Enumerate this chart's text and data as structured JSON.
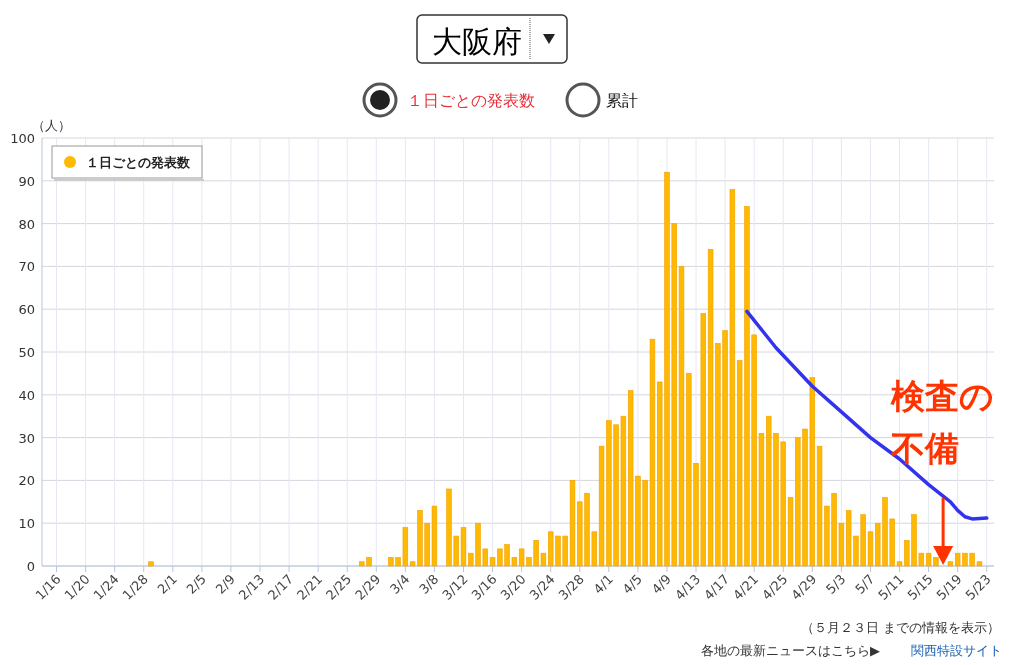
{
  "chart_data": {
    "type": "bar",
    "title": "大阪府",
    "ylabel": "（人）",
    "annotations": [
      "１日ごとの発表数",
      "累計",
      {
        "text": "検査の不備",
        "x": "--05-17",
        "y": 0
      },
      "（５月２３日 までの情報を表示）",
      "各地の最新ニュースはこちら▶",
      "関西特設サイト"
    ],
    "x": [
      "--01-16",
      "--01-17",
      "--01-18",
      "--01-19",
      "--01-20",
      "--01-21",
      "--01-22",
      "--01-23",
      "--01-24",
      "--01-25",
      "--01-26",
      "--01-27",
      "--01-28",
      "--01-29",
      "--01-30",
      "--01-31",
      "--02-01",
      "--02-02",
      "--02-03",
      "--02-04",
      "--02-05",
      "--02-06",
      "--02-07",
      "--02-08",
      "--02-09",
      "--02-10",
      "--02-11",
      "--02-12",
      "--02-13",
      "--02-14",
      "--02-15",
      "--02-16",
      "--02-17",
      "--02-18",
      "--02-19",
      "--02-20",
      "--02-21",
      "--02-22",
      "--02-23",
      "--02-24",
      "--02-25",
      "--02-26",
      "--02-27",
      "--02-28",
      "--02-29",
      "--03-01",
      "--03-02",
      "--03-03",
      "--03-04",
      "--03-05",
      "--03-06",
      "--03-07",
      "--03-08",
      "--03-09",
      "--03-10",
      "--03-11",
      "--03-12",
      "--03-13",
      "--03-14",
      "--03-15",
      "--03-16",
      "--03-17",
      "--03-18",
      "--03-19",
      "--03-20",
      "--03-21",
      "--03-22",
      "--03-23",
      "--03-24",
      "--03-25",
      "--03-26",
      "--03-27",
      "--03-28",
      "--03-29",
      "--03-30",
      "--03-31",
      "--04-01",
      "--04-02",
      "--04-03",
      "--04-04",
      "--04-05",
      "--04-06",
      "--04-07",
      "--04-08",
      "--04-09",
      "--04-10",
      "--04-11",
      "--04-12",
      "--04-13",
      "--04-14",
      "--04-15",
      "--04-16",
      "--04-17",
      "--04-18",
      "--04-19",
      "--04-20",
      "--04-21",
      "--04-22",
      "--04-23",
      "--04-24",
      "--04-25",
      "--04-26",
      "--04-27",
      "--04-28",
      "--04-29",
      "--04-30",
      "--05-01",
      "--05-02",
      "--05-03",
      "--05-04",
      "--05-05",
      "--05-06",
      "--05-07",
      "--05-08",
      "--05-09",
      "--05-10",
      "--05-11",
      "--05-12",
      "--05-13",
      "--05-14",
      "--05-15",
      "--05-16",
      "--05-17",
      "--05-18",
      "--05-19",
      "--05-20",
      "--05-21",
      "--05-22",
      "--05-23"
    ],
    "series": [
      {
        "name": "１日ごとの発表数",
        "color": "#ffb900",
        "values": [
          0,
          0,
          0,
          0,
          0,
          0,
          0,
          0,
          0,
          0,
          0,
          0,
          0,
          1,
          0,
          0,
          0,
          0,
          0,
          0,
          0,
          0,
          0,
          0,
          0,
          0,
          0,
          0,
          0,
          0,
          0,
          0,
          0,
          0,
          0,
          0,
          0,
          0,
          0,
          0,
          0,
          0,
          1,
          2,
          0,
          0,
          2,
          2,
          9,
          1,
          13,
          10,
          14,
          0,
          18,
          7,
          9,
          3,
          10,
          4,
          2,
          4,
          5,
          2,
          4,
          2,
          6,
          3,
          8,
          7,
          7,
          20,
          15,
          17,
          8,
          28,
          34,
          33,
          35,
          41,
          21,
          20,
          53,
          43,
          92,
          80,
          70,
          45,
          24,
          59,
          74,
          52,
          55,
          88,
          48,
          84,
          54,
          31,
          35,
          31,
          29,
          16,
          30,
          32,
          44,
          28,
          14,
          17,
          10,
          13,
          7,
          12,
          8,
          10,
          16,
          11,
          1,
          6,
          12,
          3,
          3,
          2,
          0,
          1,
          3,
          3,
          3,
          1,
          0
        ]
      },
      {
        "type": "line",
        "color": "#3333ee",
        "x": [
          "--04-20",
          "--04-24",
          "--04-29",
          "--05-03",
          "--05-07",
          "--05-11",
          "--05-15",
          "--05-18",
          "--05-19",
          "--05-20",
          "--05-21",
          "--05-23"
        ],
        "values": [
          59.5,
          51,
          42,
          36,
          30,
          25,
          19,
          15,
          13,
          11.5,
          11,
          11.2
        ]
      }
    ],
    "xlim": [
      "--01-14",
      "--05-24"
    ],
    "ylim": [
      0,
      100
    ],
    "xticks": [
      {
        "value": "--01-16",
        "label": "1/16"
      },
      {
        "value": "--01-20",
        "label": "1/20"
      },
      {
        "value": "--01-24",
        "label": "1/24"
      },
      {
        "value": "--01-28",
        "label": "1/28"
      },
      {
        "value": "--02-01",
        "label": "2/1"
      },
      {
        "value": "--02-05",
        "label": "2/5"
      },
      {
        "value": "--02-09",
        "label": "2/9"
      },
      {
        "value": "--02-13",
        "label": "2/13"
      },
      {
        "value": "--02-17",
        "label": "2/17"
      },
      {
        "value": "--02-21",
        "label": "2/21"
      },
      {
        "value": "--02-25",
        "label": "2/25"
      },
      {
        "value": "--02-29",
        "label": "2/29"
      },
      {
        "value": "--03-04",
        "label": "3/4"
      },
      {
        "value": "--03-08",
        "label": "3/8"
      },
      {
        "value": "--03-12",
        "label": "3/12"
      },
      {
        "value": "--03-16",
        "label": "3/16"
      },
      {
        "value": "--03-20",
        "label": "3/20"
      },
      {
        "value": "--03-24",
        "label": "3/24"
      },
      {
        "value": "--03-28",
        "label": "3/28"
      },
      {
        "value": "--04-01",
        "label": "4/1"
      },
      {
        "value": "--04-05",
        "label": "4/5"
      },
      {
        "value": "--04-09",
        "label": "4/9"
      },
      {
        "value": "--04-13",
        "label": "4/13"
      },
      {
        "value": "--04-17",
        "label": "4/17"
      },
      {
        "value": "--04-21",
        "label": "4/21"
      },
      {
        "value": "--04-25",
        "label": "4/25"
      },
      {
        "value": "--04-29",
        "label": "4/29"
      },
      {
        "value": "--05-03",
        "label": "5/3"
      },
      {
        "value": "--05-07",
        "label": "5/7"
      },
      {
        "value": "--05-11",
        "label": "5/11"
      },
      {
        "value": "--05-15",
        "label": "5/15"
      },
      {
        "value": "--05-19",
        "label": "5/19"
      },
      {
        "value": "--05-23",
        "label": "5/23"
      }
    ],
    "yticks": [
      0,
      10,
      20,
      30,
      40,
      50,
      60,
      70,
      80,
      90,
      100
    ],
    "grid": true,
    "legend": "top left"
  }
}
